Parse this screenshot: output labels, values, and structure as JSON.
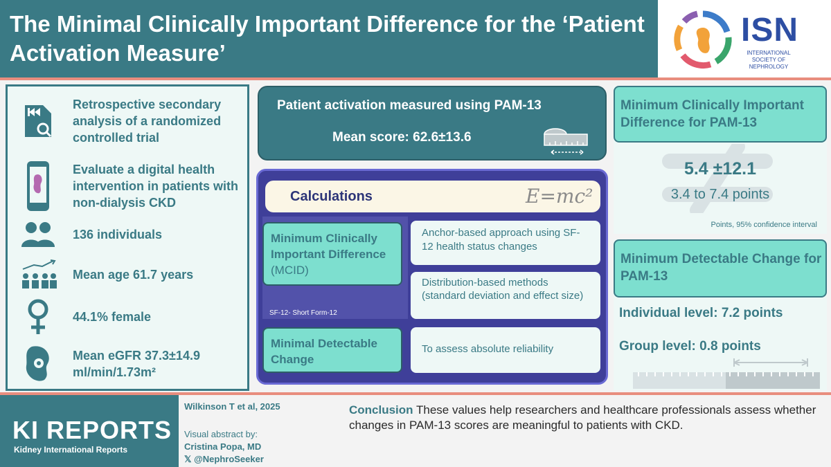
{
  "header": {
    "title": "The Minimal Clinically Important Difference for the ‘Patient Activation Measure’"
  },
  "logo": {
    "name": "ISN",
    "subtitle": "INTERNATIONAL SOCIETY OF NEPHROLOGY"
  },
  "left": {
    "items": [
      {
        "icon": "rewind-search-icon",
        "text": "Retrospective secondary analysis of a randomized controlled trial"
      },
      {
        "icon": "phone-kidney-icon",
        "text": "Evaluate a digital health intervention in patients with non-dialysis CKD"
      },
      {
        "icon": "people-icon",
        "text": "136 individuals"
      },
      {
        "icon": "age-group-icon",
        "text": "Mean age 61.7 years"
      },
      {
        "icon": "female-icon",
        "text": "44.1% female"
      },
      {
        "icon": "kidney-gear-icon",
        "text": "Mean eGFR 37.3±14.9 ml/min/1.73m²"
      }
    ]
  },
  "middle": {
    "top_line1": "Patient activation measured using PAM-13",
    "top_line2": "Mean score: 62.6±13.6",
    "calc_title": "Calculations",
    "formula": "E=mc²",
    "mcid_label": "Minimum Clinically Important Difference",
    "mcid_abbr": "(MCID)",
    "anchor_text": "Anchor-based approach using SF-12 health status changes",
    "distribution_text": "Distribution-based methods (standard deviation and effect size)",
    "sf_note": "SF-12- Short Form-12",
    "mdc_label": "Minimal Detectable Change",
    "mdc_text": "To assess absolute reliability"
  },
  "right": {
    "mcid_head": "Minimum Clinically Important Difference for PAM-13",
    "mcid_value": "5.4 ±12.1",
    "mcid_range": "3.4 to 7.4 points",
    "mcid_note": "Points, 95% confidence interval",
    "mdc_head": "Minimum Detectable Change for PAM-13",
    "mdc_individual": "Individual level: 7.2 points",
    "mdc_group": "Group level: 0.8 points"
  },
  "footer": {
    "journal": "KI REPORTS",
    "journal_sub": "Kidney International Reports",
    "citation": "Wilkinson T et al, 2025",
    "va_label": "Visual abstract by:",
    "va_name": "Cristina Popa, MD",
    "va_handle": "𝕏 @NephroSeeker",
    "conclusion_label": "Conclusion",
    "conclusion_text": " These values help researchers and healthcare professionals assess whether changes in PAM-13 scores are meaningful to patients with CKD."
  },
  "colors": {
    "teal": "#3a7a85",
    "mint": "#7ddfcf",
    "navy": "#3f3f99",
    "accent": "#e88d7e"
  }
}
